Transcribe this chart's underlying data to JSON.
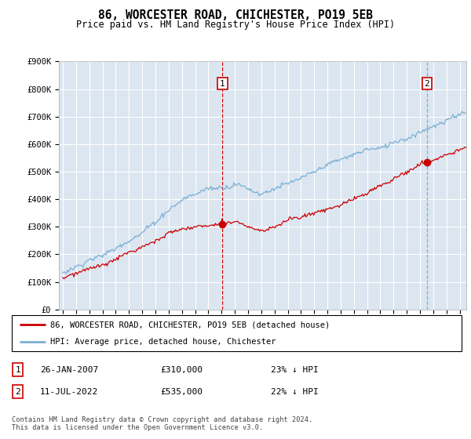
{
  "title": "86, WORCESTER ROAD, CHICHESTER, PO19 5EB",
  "subtitle": "Price paid vs. HM Land Registry's House Price Index (HPI)",
  "ylim": [
    0,
    900000
  ],
  "xlim_start": 1994.7,
  "xlim_end": 2025.5,
  "xtick_years": [
    1995,
    1996,
    1997,
    1998,
    1999,
    2000,
    2001,
    2002,
    2003,
    2004,
    2005,
    2006,
    2007,
    2008,
    2009,
    2010,
    2011,
    2012,
    2013,
    2014,
    2015,
    2016,
    2017,
    2018,
    2019,
    2020,
    2021,
    2022,
    2023,
    2024,
    2025
  ],
  "hpi_color": "#7bafd4",
  "price_color": "#cc0000",
  "marker_color": "#cc0000",
  "vline1_color": "#cc0000",
  "vline2_color": "#7bafd4",
  "vline1_style": "--",
  "vline2_style": "--",
  "bg_color": "#dce6f1",
  "grid_color": "#ffffff",
  "transaction1": {
    "date_num": 2007.07,
    "price": 310000,
    "label": "1"
  },
  "transaction2": {
    "date_num": 2022.53,
    "price": 535000,
    "label": "2"
  },
  "legend_line1": "86, WORCESTER ROAD, CHICHESTER, PO19 5EB (detached house)",
  "legend_line2": "HPI: Average price, detached house, Chichester",
  "footnote": "Contains HM Land Registry data © Crown copyright and database right 2024.\nThis data is licensed under the Open Government Licence v3.0.",
  "table_rows": [
    {
      "num": "1",
      "date": "26-JAN-2007",
      "price": "£310,000",
      "pct": "23% ↓ HPI"
    },
    {
      "num": "2",
      "date": "11-JUL-2022",
      "price": "£535,000",
      "pct": "22% ↓ HPI"
    }
  ]
}
